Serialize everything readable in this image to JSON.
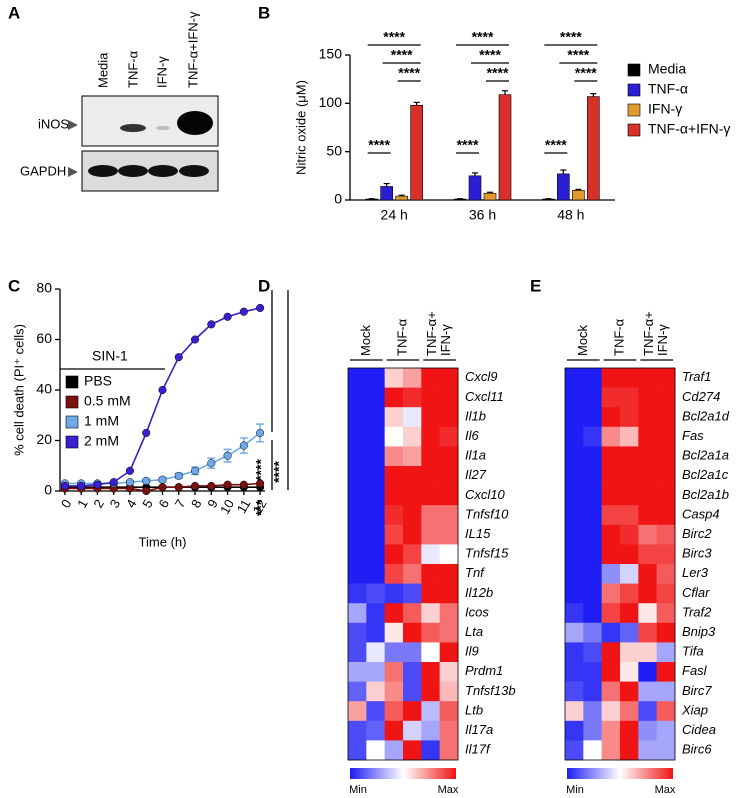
{
  "blot": {
    "panel_label": "A",
    "lanes": [
      "Media",
      "TNF-α",
      "IFN-γ",
      "TNF-α+IFN-γ"
    ],
    "rows": [
      "iNOS",
      "GAPDH"
    ]
  },
  "chart_data": [
    {
      "type": "bar",
      "panel_label": "B",
      "ylabel": "Nitric oxide (μM)",
      "categories": [
        "24 h",
        "36 h",
        "48 h"
      ],
      "series": [
        {
          "name": "Media",
          "color": "#000000",
          "values": [
            1,
            1,
            1
          ],
          "errors": [
            0.3,
            0.3,
            0.3
          ]
        },
        {
          "name": "TNF-α",
          "color": "#2b1fd6",
          "values": [
            14,
            25,
            27
          ],
          "errors": [
            3,
            3,
            4
          ]
        },
        {
          "name": "IFN-γ",
          "color": "#e09a30",
          "values": [
            4,
            7,
            10
          ],
          "errors": [
            1,
            1,
            1
          ]
        },
        {
          "name": "TNF-α+IFN-γ",
          "color": "#d8302a",
          "values": [
            98,
            109,
            107
          ],
          "errors": [
            3,
            4,
            3
          ]
        }
      ],
      "ylim": [
        0,
        150
      ],
      "yticks": [
        0,
        50,
        100,
        150
      ],
      "annotations": [
        "****",
        "****",
        "****",
        "****",
        "****",
        "****",
        "****",
        "****",
        "****",
        "****",
        "****",
        "****"
      ]
    },
    {
      "type": "line",
      "panel_label": "C",
      "xlabel": "Time (h)",
      "ylabel": "% cell death (PI⁺ cells)",
      "treatment_label": "SIN-1",
      "x": [
        0,
        1,
        2,
        3,
        4,
        5,
        6,
        7,
        8,
        9,
        10,
        11,
        12
      ],
      "series": [
        {
          "name": "PBS",
          "color": "#000000",
          "values": [
            1.5,
            1.5,
            1.5,
            1.5,
            1.5,
            1.5,
            1.5,
            1.5,
            1.5,
            1.5,
            1.5,
            1.5,
            1.5
          ]
        },
        {
          "name": "0.5 mM",
          "color": "#7a1010",
          "values": [
            1,
            1,
            1,
            1,
            1,
            0,
            1.5,
            1.5,
            2,
            2,
            2.5,
            2.5,
            3
          ]
        },
        {
          "name": "1 mM",
          "color": "#6fa8e8",
          "values": [
            3,
            3,
            3,
            3,
            3.5,
            4,
            4.5,
            6,
            8,
            11,
            14,
            18,
            23
          ],
          "errors": [
            0.5,
            0.5,
            0.5,
            0.5,
            0.5,
            0.7,
            0.8,
            1,
            1.5,
            2,
            2.5,
            3,
            3.5
          ]
        },
        {
          "name": "2 mM",
          "color": "#3a1fd0",
          "values": [
            2,
            2,
            2.5,
            3.5,
            8,
            23,
            40,
            53,
            60,
            66,
            69,
            71,
            72.5
          ]
        }
      ],
      "xlim": [
        -0.3,
        12.3
      ],
      "xticks": [
        0,
        1,
        2,
        3,
        4,
        5,
        6,
        7,
        8,
        9,
        10,
        11,
        12
      ],
      "ylim": [
        0,
        80
      ],
      "yticks": [
        0,
        20,
        40,
        60,
        80
      ],
      "annotations": [
        "****",
        "***",
        "****"
      ]
    },
    {
      "type": "heatmap",
      "panel_label": "D",
      "column_groups": [
        [
          "Mock"
        ],
        [
          "TNF-α"
        ],
        [
          "TNF-α+",
          "IFN-γ"
        ]
      ],
      "rows": [
        "Cxcl9",
        "Cxcl11",
        "Il1b",
        "Il6",
        "Il1a",
        "Il27",
        "Cxcl10",
        "Tnfsf10",
        "IL15",
        "Tnfsf15",
        "Tnf",
        "Il12b",
        "Icos",
        "Lta",
        "Il9",
        "Prdm1",
        "Tnfsf13b",
        "Ltb",
        "Il17a",
        "Il17f"
      ],
      "values": [
        [
          0,
          0,
          0.6,
          0.7,
          1,
          1
        ],
        [
          0,
          0,
          1,
          0.95,
          1,
          1
        ],
        [
          0,
          0,
          0.6,
          0.45,
          1,
          1
        ],
        [
          0,
          0,
          0.5,
          0.6,
          1,
          0.95
        ],
        [
          0,
          0,
          0.75,
          0.7,
          1,
          1
        ],
        [
          0,
          0,
          1,
          1,
          1,
          1
        ],
        [
          0,
          0,
          1,
          1,
          1,
          1
        ],
        [
          0,
          0,
          0.95,
          1,
          0.8,
          0.8
        ],
        [
          0,
          0,
          0.9,
          1,
          0.8,
          0.8
        ],
        [
          0,
          0,
          1,
          0.9,
          0.45,
          0.5
        ],
        [
          0,
          0,
          0.9,
          0.8,
          1,
          1
        ],
        [
          0.05,
          0.1,
          0.05,
          0.1,
          1,
          1
        ],
        [
          0.3,
          0.05,
          1,
          0.85,
          0.6,
          0.8
        ],
        [
          0.1,
          0.05,
          0.55,
          1,
          0.85,
          0.8
        ],
        [
          0.1,
          0.45,
          0.2,
          0.2,
          0.5,
          1
        ],
        [
          0.3,
          0.3,
          0.8,
          0.1,
          1,
          0.6
        ],
        [
          0.15,
          0.6,
          0.75,
          0.1,
          1,
          0.65
        ],
        [
          0.7,
          0.1,
          0.85,
          1,
          0.35,
          0.85
        ],
        [
          0.1,
          0.15,
          1,
          0.4,
          0.3,
          0.8
        ],
        [
          0.1,
          0.5,
          0.3,
          1,
          0.05,
          0.8
        ]
      ],
      "zlim": [
        0,
        1
      ],
      "colors": {
        "low": "#1e1ef5",
        "mid": "#ffffff",
        "high": "#f01414"
      },
      "colorbar_labels": [
        "Min",
        "Max"
      ]
    },
    {
      "type": "heatmap",
      "panel_label": "E",
      "column_groups": [
        [
          "Mock"
        ],
        [
          "TNF-α"
        ],
        [
          "TNF-α+",
          "IFN-γ"
        ]
      ],
      "rows": [
        "Traf1",
        "Cd274",
        "Bcl2a1d",
        "Fas",
        "Bcl2a1a",
        "Bcl2a1c",
        "Bcl2a1b",
        "Casp4",
        "Birc2",
        "Birc3",
        "Ler3",
        "Cflar",
        "Traf2",
        "Bnip3",
        "Tifa",
        "Fasl",
        "Birc7",
        "Xiap",
        "Cidea",
        "Birc6"
      ],
      "values": [
        [
          0,
          0,
          1,
          1,
          1,
          1
        ],
        [
          0,
          0,
          0.95,
          0.95,
          1,
          1
        ],
        [
          0,
          0,
          1,
          0.95,
          1,
          1
        ],
        [
          0,
          0.05,
          0.75,
          0.65,
          1,
          1
        ],
        [
          0,
          0,
          1,
          1,
          1,
          1
        ],
        [
          0,
          0,
          1,
          1,
          1,
          1
        ],
        [
          0,
          0,
          1,
          1,
          1,
          1
        ],
        [
          0,
          0,
          0.9,
          0.9,
          1,
          1
        ],
        [
          0,
          0,
          1,
          0.95,
          0.8,
          0.85
        ],
        [
          0,
          0,
          1,
          1,
          0.9,
          0.9
        ],
        [
          0,
          0,
          0.25,
          0.4,
          1,
          0.85
        ],
        [
          0,
          0,
          0.8,
          0.9,
          1,
          0.9
        ],
        [
          0.05,
          0,
          0.9,
          1,
          0.55,
          0.85
        ],
        [
          0.3,
          0.2,
          0.05,
          0.15,
          0.9,
          1
        ],
        [
          0.05,
          0.1,
          1,
          0.6,
          0.6,
          0.3
        ],
        [
          0.05,
          0.05,
          1,
          0.55,
          0,
          1
        ],
        [
          0.1,
          0.05,
          0.8,
          1,
          0.3,
          0.3
        ],
        [
          0.6,
          0.2,
          0.6,
          0.8,
          0.1,
          0.85
        ],
        [
          0.05,
          0.2,
          0.75,
          1,
          0.25,
          0.3
        ],
        [
          0.1,
          0.5,
          0.75,
          1,
          0.3,
          0.3
        ]
      ],
      "zlim": [
        0,
        1
      ],
      "colors": {
        "low": "#1e1ef5",
        "mid": "#ffffff",
        "high": "#f01414"
      },
      "colorbar_labels": [
        "Min",
        "Max"
      ]
    }
  ]
}
